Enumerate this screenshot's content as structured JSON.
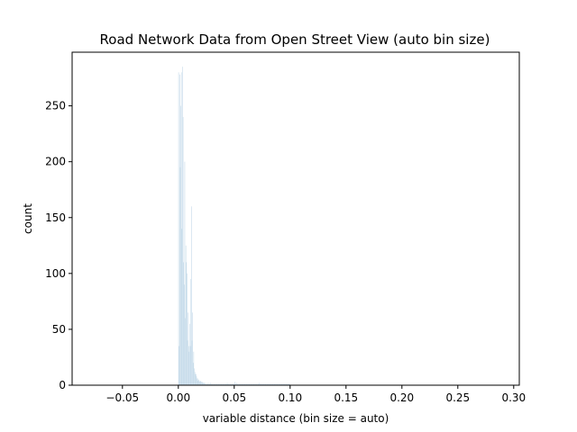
{
  "chart_data": {
    "type": "bar",
    "title": "Road Network Data from Open Street View (auto bin size)",
    "xlabel": "variable distance (bin size = auto)",
    "ylabel": "count",
    "xlim": [
      -0.095,
      0.305
    ],
    "ylim": [
      0,
      298
    ],
    "grid": false,
    "bar_color": "#c6dbea",
    "x_ticks": [
      {
        "value": -0.05,
        "label": "−0.05"
      },
      {
        "value": 0.0,
        "label": "0.00"
      },
      {
        "value": 0.05,
        "label": "0.05"
      },
      {
        "value": 0.1,
        "label": "0.10"
      },
      {
        "value": 0.15,
        "label": "0.15"
      },
      {
        "value": 0.2,
        "label": "0.20"
      },
      {
        "value": 0.25,
        "label": "0.25"
      },
      {
        "value": 0.3,
        "label": "0.30"
      }
    ],
    "y_ticks": [
      {
        "value": 0,
        "label": "0"
      },
      {
        "value": 50,
        "label": "50"
      },
      {
        "value": 100,
        "label": "100"
      },
      {
        "value": 150,
        "label": "150"
      },
      {
        "value": 200,
        "label": "200"
      },
      {
        "value": 250,
        "label": "250"
      }
    ],
    "bin_width": 0.0005,
    "x_start": 0.0,
    "values": [
      280,
      35,
      278,
      195,
      250,
      280,
      140,
      285,
      240,
      110,
      90,
      200,
      60,
      125,
      110,
      100,
      40,
      65,
      35,
      30,
      55,
      35,
      95,
      160,
      40,
      65,
      20,
      30,
      15,
      12,
      10,
      10,
      8,
      6,
      6,
      4,
      5,
      4,
      3,
      4,
      3,
      3,
      2,
      3,
      2,
      2,
      2,
      1,
      2,
      1,
      1,
      1,
      1,
      2,
      1,
      1,
      1,
      2,
      1,
      1,
      1,
      1,
      1,
      1,
      1,
      1,
      1,
      1,
      1,
      1,
      1,
      1,
      1,
      1,
      1,
      1,
      1,
      1,
      1,
      1,
      1,
      1,
      1,
      1,
      1,
      1,
      1,
      2,
      1,
      1,
      1,
      1,
      1,
      1,
      1,
      1,
      1,
      1,
      1,
      1,
      1,
      3,
      1,
      1,
      2,
      1,
      1,
      1,
      1,
      1,
      1,
      1,
      1,
      1,
      1,
      1,
      1,
      1,
      1,
      1,
      1,
      1,
      1,
      1,
      1,
      1,
      1,
      1,
      1,
      1,
      1,
      1,
      1,
      1,
      1,
      1,
      1,
      1,
      1,
      1,
      1,
      1,
      1,
      1,
      2,
      1,
      1,
      1,
      1,
      1,
      1,
      1,
      1,
      1,
      1,
      1,
      1,
      1,
      1,
      1,
      1,
      1,
      1,
      1,
      1,
      1,
      1,
      1,
      1,
      1,
      1,
      1,
      1,
      1,
      1,
      1,
      1,
      1,
      1,
      1,
      1,
      1,
      1,
      1,
      1,
      1,
      1,
      1,
      1,
      1,
      1,
      1,
      1,
      1,
      1,
      1,
      1,
      1,
      1,
      1
    ]
  }
}
